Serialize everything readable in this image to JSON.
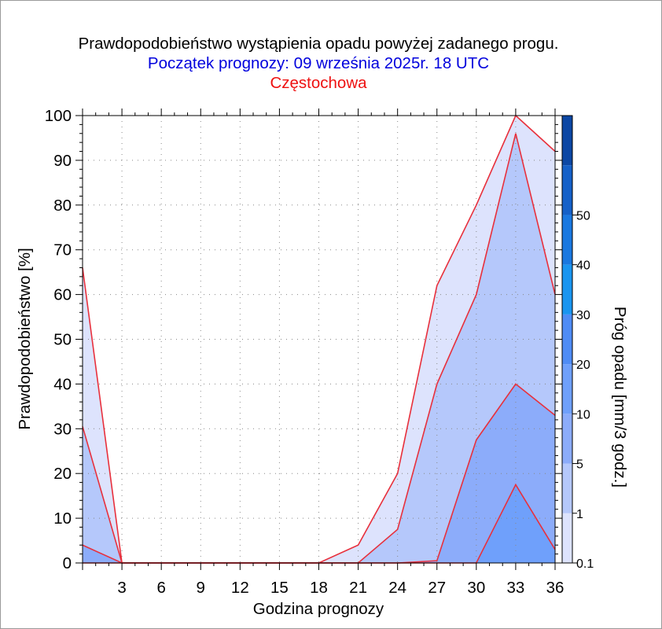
{
  "header": {
    "title": "Prawdopodobieństwo wystąpienia opadu powyżej zadanego progu.",
    "subtitle": "Początek prognozy: 09 września 2025r. 18 UTC",
    "location": "Częstochowa"
  },
  "colors": {
    "title": "#000000",
    "subtitle": "#0000dd",
    "location": "#ee1111",
    "series_line": "#e8303c"
  },
  "chart_data": {
    "type": "area",
    "title": "Prawdopodobieństwo wystąpienia opadu powyżej zadanego progu.",
    "xlabel": "Godzina prognozy",
    "ylabel": "Prawdopodobieństwo [%]",
    "colorbar_label": "Próg opadu [mm/3 godz.]",
    "xlim": [
      0,
      36
    ],
    "ylim": [
      0,
      100
    ],
    "x": [
      0,
      3,
      6,
      9,
      12,
      15,
      18,
      21,
      24,
      27,
      30,
      33,
      36
    ],
    "x_ticks": [
      "3",
      "6",
      "9",
      "12",
      "15",
      "18",
      "21",
      "24",
      "27",
      "30",
      "33",
      "36"
    ],
    "y_ticks": [
      "0",
      "10",
      "20",
      "30",
      "40",
      "50",
      "60",
      "70",
      "80",
      "90",
      "100"
    ],
    "grid": true,
    "series": [
      {
        "name": "0.1",
        "color": "#dde3fd",
        "values": [
          66,
          0,
          0,
          0,
          0,
          0,
          0,
          4,
          20,
          62,
          80,
          100,
          92
        ]
      },
      {
        "name": "1",
        "color": "#b5c8fb",
        "values": [
          30.5,
          0,
          0,
          0,
          0,
          0,
          0,
          0,
          7.5,
          40,
          60,
          96,
          60
        ]
      },
      {
        "name": "5",
        "color": "#8cacfa",
        "values": [
          4,
          0,
          0,
          0,
          0,
          0,
          0,
          0,
          0,
          0.5,
          27.5,
          40,
          33
        ]
      },
      {
        "name": "10",
        "color": "#6fa0fb",
        "values": [
          0,
          0,
          0,
          0,
          0,
          0,
          0,
          0,
          0,
          0,
          0,
          17.5,
          3
        ]
      }
    ],
    "colorbar": {
      "labels": [
        "0.1",
        "1",
        "5",
        "10",
        "20",
        "30",
        "40",
        "50"
      ],
      "bands": [
        {
          "from": "0.1",
          "to": "1",
          "color": "#dde3fd"
        },
        {
          "from": "1",
          "to": "5",
          "color": "#b5c8fb"
        },
        {
          "from": "5",
          "to": "10",
          "color": "#8cacfa"
        },
        {
          "from": "10",
          "to": "20",
          "color": "#6fa0fb"
        },
        {
          "from": "20",
          "to": "30",
          "color": "#4f8cf5"
        },
        {
          "from": "30",
          "to": "40",
          "color": "#1a95f0"
        },
        {
          "from": "40",
          "to": "50",
          "color": "#1a78e0"
        },
        {
          "from": "50",
          "to": "",
          "color": "#1560c8"
        },
        {
          "from": "",
          "to": "",
          "color": "#0c47a4"
        }
      ]
    }
  }
}
